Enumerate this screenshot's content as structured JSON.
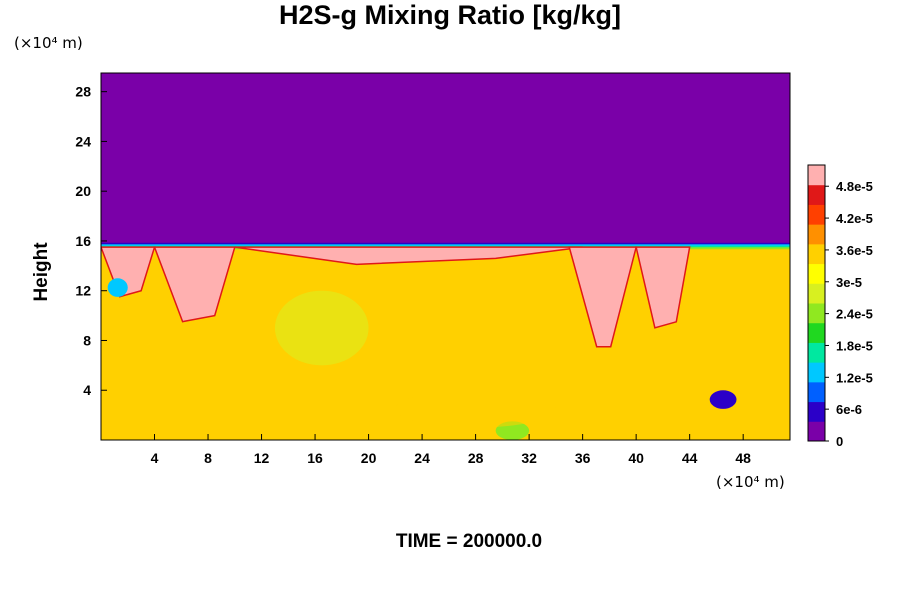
{
  "chart_data": {
    "type": "heatmap",
    "title": "H2S-g Mixing Ratio [kg/kg]",
    "ylabel": "Height",
    "y_unit_label": "(×10⁴ m)",
    "x_unit_label": "(×10⁴ m)",
    "footer": "TIME = 200000.0",
    "xlim": [
      0,
      51.5
    ],
    "ylim": [
      0,
      29.5
    ],
    "x_ticks": [
      "4",
      "8",
      "12",
      "16",
      "20",
      "24",
      "28",
      "32",
      "36",
      "40",
      "44",
      "48"
    ],
    "y_ticks": [
      "4",
      "8",
      "12",
      "16",
      "20",
      "24",
      "28"
    ],
    "colorbar": {
      "min": 0,
      "max": 5.2e-05,
      "tick_values": [
        0,
        6e-06,
        1.2e-05,
        1.8e-05,
        2.4e-05,
        3e-05,
        3.6e-05,
        4.2e-05,
        4.8e-05
      ],
      "tick_labels": [
        "0",
        "6e-6",
        "1.2e-5",
        "1.8e-5",
        "2.4e-5",
        "3e-5",
        "3.6e-5",
        "4.2e-5",
        "4.8e-5"
      ],
      "colors": [
        "#7a00a8",
        "#2b00c8",
        "#0060ff",
        "#00c8ff",
        "#00e8a0",
        "#20d820",
        "#90e820",
        "#d8f020",
        "#ffff00",
        "#ffd000",
        "#ff9000",
        "#ff4000",
        "#e01818",
        "#ffb0b0"
      ]
    },
    "upper_background_value": 0,
    "interface_height": 15.5,
    "interior_base_value": 3.4e-05,
    "interior_features": [
      {
        "name": "saturated-cap-west",
        "x": [
          0,
          4
        ],
        "y": [
          12,
          15.5
        ],
        "value": 5.2e-05
      },
      {
        "name": "saturated-plume-4-10",
        "x": [
          4,
          10
        ],
        "y": [
          10,
          15.5
        ],
        "value": 5.2e-05
      },
      {
        "name": "saturated-band-10-36",
        "x": [
          10,
          36
        ],
        "y": [
          14.6,
          15.5
        ],
        "value": 5.2e-05
      },
      {
        "name": "saturated-v-35-40",
        "x": [
          35,
          40
        ],
        "y": [
          7.5,
          15.5
        ],
        "value": 5.2e-05
      },
      {
        "name": "saturated-plume-40-44",
        "x": [
          40,
          44
        ],
        "y": [
          9.5,
          15.5
        ],
        "value": 5.2e-05
      },
      {
        "name": "low-blob-west",
        "x": [
          0.5,
          2
        ],
        "y": [
          11.5,
          13
        ],
        "value": 1.2e-05
      },
      {
        "name": "low-blob-46",
        "x": [
          45.5,
          47.5
        ],
        "y": [
          2.5,
          4
        ],
        "value": 6e-06
      },
      {
        "name": "low-blob-31",
        "x": [
          29.5,
          32
        ],
        "y": [
          0,
          1.5
        ],
        "value": 2.4e-05
      },
      {
        "name": "green-arc-13-20",
        "x": [
          13,
          20
        ],
        "y": [
          6,
          12
        ],
        "value": 2.8e-05
      },
      {
        "name": "yellow-band-22-34",
        "x": [
          22,
          34
        ],
        "y": [
          1,
          4
        ],
        "value": 3.6e-05
      }
    ]
  }
}
